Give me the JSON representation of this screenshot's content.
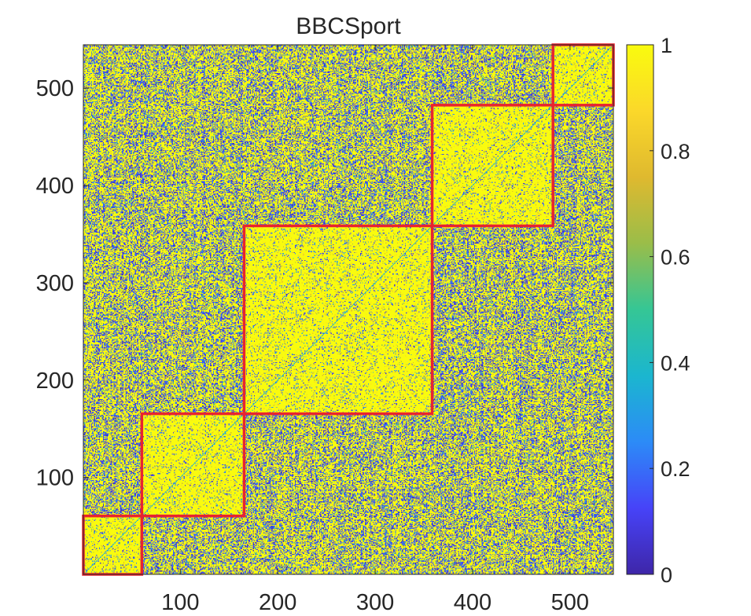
{
  "chart_data": {
    "type": "heatmap",
    "title": "BBCSport",
    "xlabel": "",
    "ylabel": "",
    "n": 544,
    "xlim": [
      1,
      544
    ],
    "ylim": [
      1,
      544
    ],
    "x_ticks": [
      100,
      200,
      300,
      400,
      500
    ],
    "y_ticks": [
      100,
      200,
      300,
      400,
      500
    ],
    "colorbar": {
      "range": [
        0,
        1
      ],
      "ticks": [
        0,
        0.2,
        0.4,
        0.6,
        0.8,
        1
      ],
      "tick_labels": [
        "0",
        "0.2",
        "0.4",
        "0.6",
        "0.8",
        "1"
      ],
      "colormap": "parula",
      "colormap_stops": [
        "#3e26a8",
        "#4743f8",
        "#2c8bf7",
        "#1bb6cf",
        "#35c695",
        "#9abd49",
        "#dfb92f",
        "#fbd82a",
        "#f9fb0e"
      ]
    },
    "clusters": [
      {
        "start": 1,
        "end": 60
      },
      {
        "start": 61,
        "end": 165
      },
      {
        "start": 166,
        "end": 358
      },
      {
        "start": 359,
        "end": 482
      },
      {
        "start": 483,
        "end": 544
      }
    ],
    "cluster_border_color": "#e8242f",
    "description_values": {
      "within_cluster_mostly": 1,
      "between_cluster_mixed": [
        0,
        1
      ]
    }
  }
}
